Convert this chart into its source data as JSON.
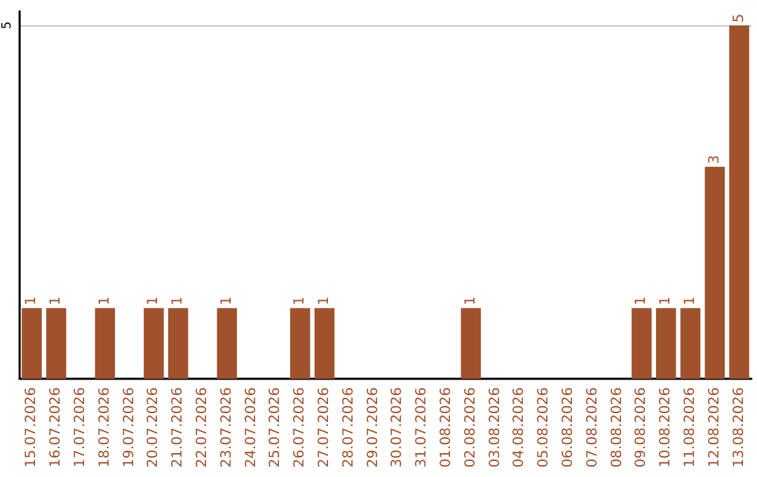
{
  "chart_data": {
    "type": "bar",
    "categories": [
      "15.07.2026",
      "16.07.2026",
      "17.07.2026",
      "18.07.2026",
      "19.07.2026",
      "20.07.2026",
      "21.07.2026",
      "22.07.2026",
      "23.07.2026",
      "24.07.2026",
      "25.07.2026",
      "26.07.2026",
      "27.07.2026",
      "28.07.2026",
      "29.07.2026",
      "30.07.2026",
      "31.07.2026",
      "01.08.2026",
      "02.08.2026",
      "03.08.2026",
      "04.08.2026",
      "05.08.2026",
      "06.08.2026",
      "07.08.2026",
      "08.08.2026",
      "09.08.2026",
      "10.08.2026",
      "11.08.2026",
      "12.08.2026",
      "13.08.2026"
    ],
    "values": [
      1,
      1,
      0,
      1,
      0,
      1,
      1,
      0,
      1,
      0,
      0,
      1,
      1,
      0,
      0,
      0,
      0,
      0,
      1,
      0,
      0,
      0,
      0,
      0,
      0,
      1,
      1,
      1,
      3,
      5
    ],
    "value_labels": [
      "1",
      "1",
      null,
      "1",
      null,
      "1",
      "1",
      null,
      "1",
      null,
      null,
      "1",
      "1",
      null,
      null,
      null,
      null,
      null,
      "1",
      null,
      null,
      null,
      null,
      null,
      null,
      "1",
      "1",
      "1",
      "3",
      "5"
    ],
    "color": "#a0522d",
    "ylim": [
      0,
      5.2
    ],
    "yticks": [
      5
    ],
    "grid": "y"
  }
}
